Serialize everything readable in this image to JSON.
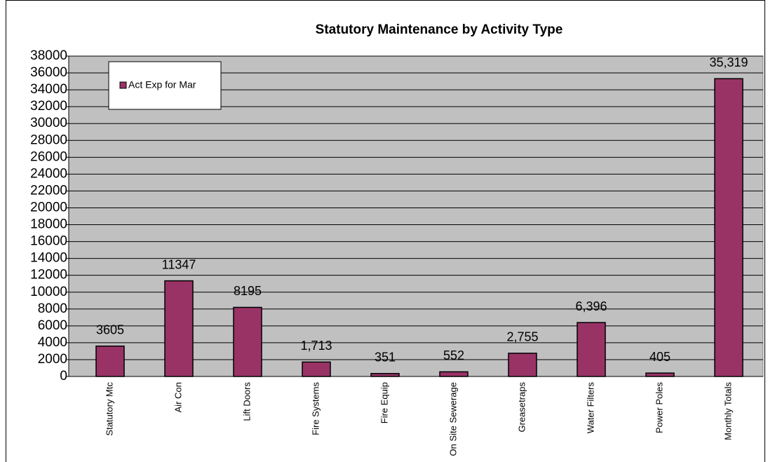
{
  "chart_data": {
    "type": "bar",
    "title": "Statutory Maintenance by Activity Type",
    "categories": [
      "Statutory Mtc",
      "Air Con",
      "Lift Doors",
      "Fire Systems",
      "Fire Equip",
      "On Site Sewerage",
      "Greasetraps",
      "Water Filters",
      "Power Poles",
      "Monthly Totals"
    ],
    "series": [
      {
        "name": "Act Exp for Mar",
        "color": "#993366",
        "values": [
          3605,
          11347,
          8195,
          1713,
          351,
          552,
          2755,
          6396,
          405,
          35319
        ],
        "value_labels": [
          "3605",
          "11347",
          "8195",
          "1,713",
          "351",
          "552",
          "2,755",
          "6,396",
          "405",
          "35,319"
        ]
      }
    ],
    "ylim": [
      0,
      38000
    ],
    "yticks": [
      0,
      2000,
      4000,
      6000,
      8000,
      10000,
      12000,
      14000,
      16000,
      18000,
      20000,
      22000,
      24000,
      26000,
      28000,
      30000,
      32000,
      34000,
      36000,
      38000
    ],
    "grid": true,
    "legend": "top-left"
  }
}
